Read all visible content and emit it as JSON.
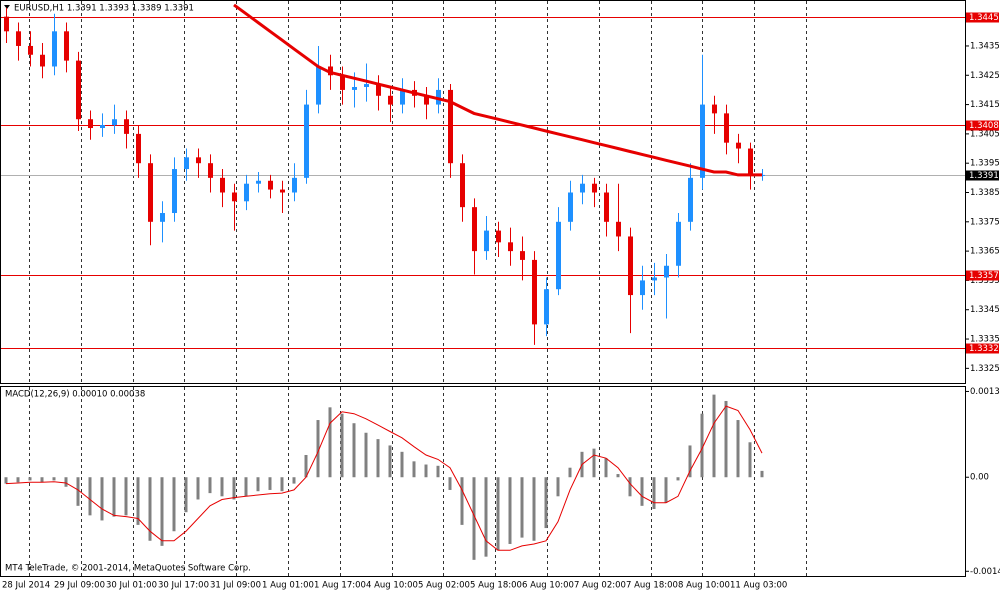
{
  "chart_data": {
    "type": "candlestick",
    "title": "EURUSD,H1  1.3391 1.3393 1.3389 1.3391",
    "x_labels": [
      "28 Jul 2014",
      "29 Jul 09:00",
      "30 Jul 01:00",
      "30 Jul 17:00",
      "31 Jul 09:00",
      "1 Aug 01:00",
      "1 Aug 17:00",
      "4 Aug 10:00",
      "5 Aug 02:00",
      "5 Aug 18:00",
      "6 Aug 10:00",
      "7 Aug 02:00",
      "7 Aug 18:00",
      "8 Aug 10:00",
      "11 Aug 03:00"
    ],
    "open": [
      1.3445,
      1.344,
      1.3435,
      1.3432,
      1.3428,
      1.344,
      1.343,
      1.341,
      1.3407,
      1.3408,
      1.341,
      1.3405,
      1.3395,
      1.3375,
      1.3378,
      1.3393,
      1.3397,
      1.3395,
      1.339,
      1.3385,
      1.3382,
      1.3388,
      1.3389,
      1.3386,
      1.3385,
      1.339,
      1.3415,
      1.3428,
      1.3425,
      1.342,
      1.3421,
      1.3422,
      1.3418,
      1.3415,
      1.342,
      1.3418,
      1.3415,
      1.342,
      1.3395,
      1.338,
      1.3365,
      1.3372,
      1.3368,
      1.3365,
      1.3362,
      1.334,
      1.3352,
      1.3375,
      1.3385,
      1.3388,
      1.3385,
      1.3375,
      1.337,
      1.335,
      1.3355,
      1.3356,
      1.336,
      1.3375,
      1.339,
      1.3415,
      1.3412,
      1.3402,
      1.34,
      1.3391
    ],
    "high": [
      1.3448,
      1.3443,
      1.344,
      1.3436,
      1.3446,
      1.3443,
      1.3433,
      1.3413,
      1.3412,
      1.3415,
      1.3413,
      1.3408,
      1.3398,
      1.3382,
      1.3397,
      1.34,
      1.34,
      1.3398,
      1.3393,
      1.3388,
      1.3391,
      1.3392,
      1.3391,
      1.3389,
      1.3395,
      1.342,
      1.3435,
      1.3432,
      1.3428,
      1.3426,
      1.3429,
      1.3425,
      1.3421,
      1.3424,
      1.3423,
      1.3421,
      1.3424,
      1.3422,
      1.3398,
      1.3383,
      1.3377,
      1.3375,
      1.3373,
      1.337,
      1.3365,
      1.3356,
      1.338,
      1.3389,
      1.3391,
      1.339,
      1.3388,
      1.3388,
      1.3373,
      1.336,
      1.3361,
      1.3364,
      1.3378,
      1.3395,
      1.3432,
      1.3418,
      1.3415,
      1.3405,
      1.3402,
      1.3393
    ],
    "low": [
      1.3436,
      1.343,
      1.3428,
      1.3424,
      1.3425,
      1.3426,
      1.3406,
      1.3403,
      1.3404,
      1.3405,
      1.34,
      1.339,
      1.3367,
      1.3368,
      1.3375,
      1.3389,
      1.339,
      1.3385,
      1.338,
      1.3372,
      1.3379,
      1.3385,
      1.3383,
      1.3378,
      1.3382,
      1.3388,
      1.3412,
      1.342,
      1.3415,
      1.3414,
      1.3416,
      1.3413,
      1.3409,
      1.3412,
      1.3414,
      1.341,
      1.3412,
      1.339,
      1.3375,
      1.3357,
      1.3362,
      1.3363,
      1.336,
      1.3355,
      1.3333,
      1.3336,
      1.335,
      1.3372,
      1.3381,
      1.338,
      1.337,
      1.3365,
      1.3337,
      1.3345,
      1.335,
      1.3342,
      1.3356,
      1.3372,
      1.3386,
      1.3405,
      1.3398,
      1.3395,
      1.3386,
      1.3389
    ],
    "close": [
      1.344,
      1.3435,
      1.3432,
      1.3428,
      1.344,
      1.343,
      1.341,
      1.3407,
      1.3408,
      1.341,
      1.3405,
      1.3395,
      1.3375,
      1.3378,
      1.3393,
      1.3397,
      1.3395,
      1.339,
      1.3385,
      1.3382,
      1.3388,
      1.3389,
      1.3386,
      1.3385,
      1.339,
      1.3415,
      1.3428,
      1.3425,
      1.342,
      1.3421,
      1.3422,
      1.3418,
      1.3415,
      1.342,
      1.3418,
      1.3415,
      1.342,
      1.3395,
      1.338,
      1.3365,
      1.3372,
      1.3368,
      1.3365,
      1.3362,
      1.334,
      1.3352,
      1.3375,
      1.3385,
      1.3388,
      1.3385,
      1.3375,
      1.337,
      1.335,
      1.3355,
      1.3356,
      1.336,
      1.3375,
      1.339,
      1.3415,
      1.3412,
      1.3402,
      1.34,
      1.3391,
      1.3391
    ],
    "up_color": "#1e90ff",
    "down_color": "#e60000",
    "ma": {
      "color": "#e60000",
      "values": [
        null,
        null,
        null,
        null,
        null,
        null,
        null,
        null,
        null,
        null,
        null,
        null,
        null,
        null,
        null,
        null,
        null,
        null,
        null,
        1.3449,
        1.3446,
        1.3443,
        1.344,
        1.3437,
        1.3434,
        1.3431,
        1.3428,
        1.3426,
        1.3425,
        1.3424,
        1.3423,
        1.3422,
        1.3421,
        1.342,
        1.3419,
        1.3418,
        1.3417,
        1.3416,
        1.3414,
        1.3412,
        1.3411,
        1.341,
        1.3409,
        1.3408,
        1.3407,
        1.3406,
        1.3405,
        1.3404,
        1.3403,
        1.3402,
        1.3401,
        1.34,
        1.3399,
        1.3398,
        1.3397,
        1.3396,
        1.3395,
        1.3394,
        1.3393,
        1.3392,
        1.3392,
        1.3391,
        1.3391,
        1.3391
      ]
    },
    "levels": [
      1.3445,
      1.3408,
      1.3357,
      1.3332
    ],
    "level_color": "#e60000",
    "last_price": 1.3391,
    "ylim": [
      1.332,
      1.345
    ],
    "yticks": [
      1.3325,
      1.3335,
      1.3345,
      1.3355,
      1.3365,
      1.3375,
      1.3385,
      1.3395,
      1.3405,
      1.3415,
      1.3425,
      1.3435
    ],
    "footer": "MT4 TeleTrade, © 2001-2014, MetaQuotes Software Corp.",
    "indicator": {
      "type": "macd",
      "title": "MACD(12,26,9) 0.00010 0.00038",
      "histogram": {
        "color": "#808080",
        "values": [
          -0.0001,
          -8e-05,
          -5e-05,
          -8e-05,
          -5e-05,
          -0.00015,
          -0.00045,
          -0.0006,
          -0.00068,
          -0.00062,
          -0.0006,
          -0.00075,
          -0.001,
          -0.00108,
          -0.00085,
          -0.00055,
          -0.00035,
          -0.00025,
          -0.0003,
          -0.00035,
          -0.0003,
          -0.00022,
          -0.0002,
          -0.00022,
          -0.0001,
          0.00035,
          0.0009,
          0.0011,
          0.001,
          0.00085,
          0.0007,
          0.0006,
          0.0005,
          0.0004,
          0.00025,
          0.0002,
          0.00018,
          -0.0002,
          -0.00075,
          -0.0013,
          -0.00125,
          -0.00115,
          -0.00105,
          -0.00095,
          -0.001,
          -0.0008,
          -0.0003,
          0.00015,
          0.0004,
          0.00045,
          0.0003,
          5e-05,
          -0.0003,
          -0.00045,
          -0.0005,
          -0.0004,
          -5e-05,
          0.0005,
          0.001,
          0.0013,
          0.0012,
          0.0009,
          0.00055,
          0.0001
        ]
      },
      "signal": {
        "color": "#e60000",
        "values": [
          -0.0001,
          -9e-05,
          -8e-05,
          -8e-05,
          -7e-05,
          -9e-05,
          -0.0002,
          -0.00035,
          -0.0005,
          -0.0006,
          -0.00062,
          -0.00065,
          -0.00085,
          -0.001,
          -0.001,
          -0.00085,
          -0.00065,
          -0.00045,
          -0.00035,
          -0.00032,
          -0.0003,
          -0.00028,
          -0.00026,
          -0.00025,
          -0.0002,
          0.0,
          0.0004,
          0.00085,
          0.00103,
          0.001,
          0.00092,
          0.00082,
          0.00072,
          0.00062,
          0.00048,
          0.00035,
          0.00028,
          0.00015,
          -0.0002,
          -0.0006,
          -0.001,
          -0.00115,
          -0.00115,
          -0.00108,
          -0.00105,
          -0.001,
          -0.0007,
          -0.0002,
          0.0002,
          0.00035,
          0.0003,
          0.00015,
          -0.0001,
          -0.0003,
          -0.0004,
          -0.0004,
          -0.0003,
          0.0001,
          0.00045,
          0.00085,
          0.00112,
          0.00105,
          0.00075,
          0.00038
        ]
      },
      "ylim": [
        -0.00157,
        0.00142
      ],
      "yticks": [
        0.00135,
        {
          "value": 0,
          "label": "0.00"
        },
        -0.00148
      ]
    }
  }
}
